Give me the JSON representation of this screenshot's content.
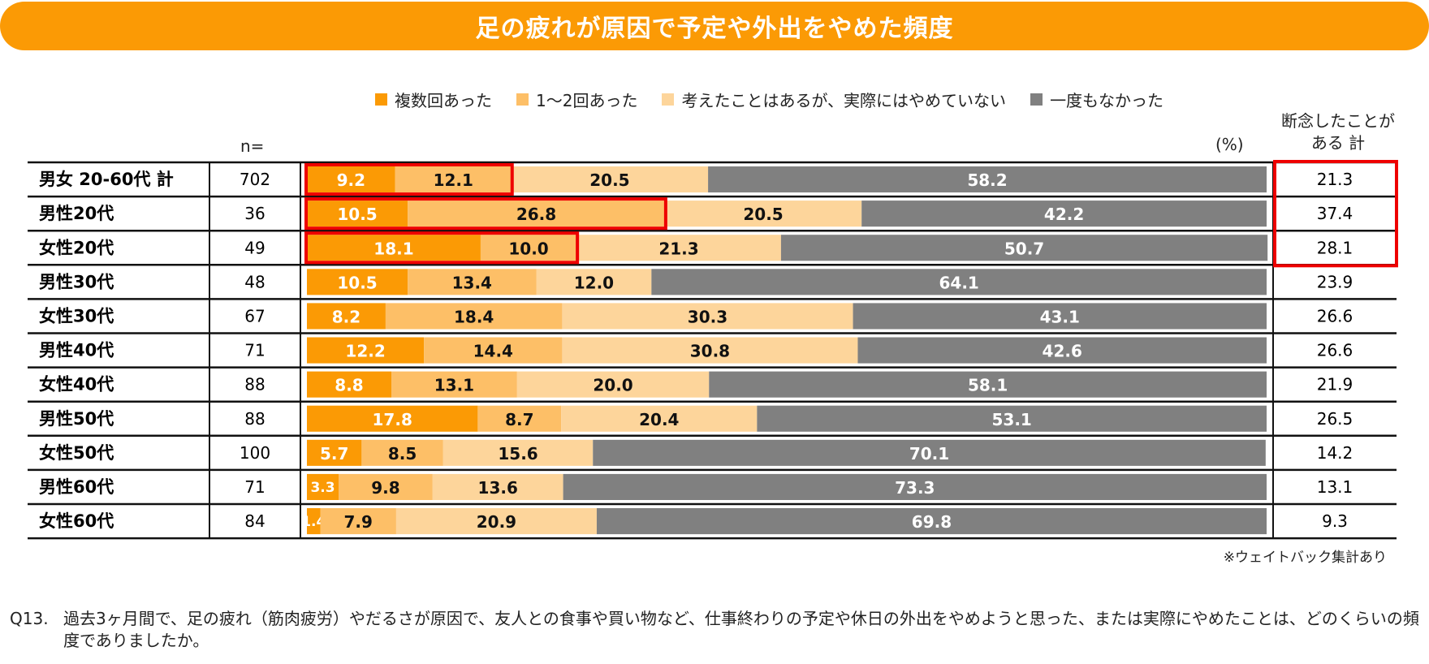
{
  "title": "足の疲れが原因で予定や外出をやめた頻度",
  "n_label": "n=",
  "unit_label": "(%)",
  "total_header": [
    "断念したことが",
    "ある 計"
  ],
  "footnote": "※ウェイトバック集計あり",
  "question": {
    "number": "Q13.",
    "text": "過去3ヶ月間で、足の疲れ（筋肉疲労）やだるさが原因で、友人との食事や買い物など、仕事終わりの予定や休日の外出をやめようと思った、または実際にやめたことは、どのくらいの頻度でありましたか。"
  },
  "colors": {
    "title_bg": "#fb9a05",
    "highlight": "#ee0000",
    "series": [
      "#fb9a05",
      "#fdbf67",
      "#fdd59b",
      "#808080"
    ],
    "label_text": [
      "#ffffff",
      "#111111",
      "#111111",
      "#ffffff"
    ]
  },
  "highlighted_rows": [
    0,
    1,
    2
  ],
  "chart_data": {
    "type": "bar",
    "orientation": "horizontal",
    "stacked": true,
    "title": "足の疲れが原因で予定や外出をやめた頻度",
    "xlabel": "",
    "ylabel": "",
    "unit": "%",
    "xlim": [
      0,
      100
    ],
    "legend_position": "top",
    "categories": [
      "男女 20-60代 計",
      "男性20代",
      "女性20代",
      "男性30代",
      "女性30代",
      "男性40代",
      "女性40代",
      "男性50代",
      "女性50代",
      "男性60代",
      "女性60代"
    ],
    "n": [
      702,
      36,
      49,
      48,
      67,
      71,
      88,
      88,
      100,
      71,
      84
    ],
    "series": [
      {
        "name": "複数回あった",
        "values": [
          9.2,
          10.5,
          18.1,
          10.5,
          8.2,
          12.2,
          8.8,
          17.8,
          5.7,
          3.3,
          1.4
        ]
      },
      {
        "name": "1～2回あった",
        "values": [
          12.1,
          26.8,
          10.0,
          13.4,
          18.4,
          14.4,
          13.1,
          8.7,
          8.5,
          9.8,
          7.9
        ]
      },
      {
        "name": "考えたことはあるが、実際にはやめていない",
        "values": [
          20.5,
          20.5,
          21.3,
          12.0,
          30.3,
          30.8,
          20.0,
          20.4,
          15.6,
          13.6,
          20.9
        ]
      },
      {
        "name": "一度もなかった",
        "values": [
          58.2,
          42.2,
          50.7,
          64.1,
          43.1,
          42.6,
          58.1,
          53.1,
          70.1,
          73.3,
          69.8
        ]
      }
    ],
    "totals_label": "断念したことがある 計",
    "totals": [
      21.3,
      37.4,
      28.1,
      23.9,
      26.6,
      26.6,
      21.9,
      26.5,
      14.2,
      13.1,
      9.3
    ]
  }
}
